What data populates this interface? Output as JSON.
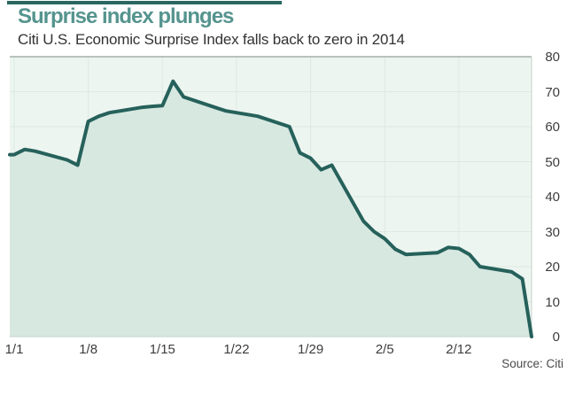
{
  "header": {
    "title": "Surprise index plunges",
    "subtitle": "Citi U.S. Economic Surprise Index falls back to zero in 2014"
  },
  "source": "Source: Citi",
  "colors": {
    "accent_bar": "#2a6761",
    "title": "#55948e",
    "subtitle_text": "#333333",
    "line": "#26615b",
    "area_fill": "#d7e8e1",
    "plot_bg": "#edf5f0",
    "grid": "#dde9e3",
    "border_top": "#a3afab",
    "border_light": "#c6d4ce",
    "tick_text": "#3d3d3d",
    "source_text": "#4a4a4a"
  },
  "chart_data": {
    "type": "area",
    "title": "Surprise index plunges",
    "subtitle": "Citi U.S. Economic Surprise Index falls back to zero in 2014",
    "source": "Source: Citi",
    "ylim": [
      0,
      80
    ],
    "y_ticks": [
      80,
      70,
      60,
      50,
      40,
      30,
      20,
      10,
      0
    ],
    "x_ticks": [
      {
        "label": "1/1",
        "day": 0
      },
      {
        "label": "1/8",
        "day": 7
      },
      {
        "label": "1/15",
        "day": 14
      },
      {
        "label": "1/22",
        "day": 21
      },
      {
        "label": "1/29",
        "day": 28
      },
      {
        "label": "2/5",
        "day": 35
      },
      {
        "label": "2/12",
        "day": 42
      }
    ],
    "grid": true,
    "legend": false,
    "y_axis_side": "right",
    "series": [
      {
        "name": "Citi U.S. Economic Surprise Index",
        "points": [
          {
            "date": "1/1",
            "day": 0,
            "value": 52
          },
          {
            "date": "1/2",
            "day": 1,
            "value": 53.5
          },
          {
            "date": "1/3",
            "day": 2,
            "value": 53
          },
          {
            "date": "1/6",
            "day": 5,
            "value": 50.5
          },
          {
            "date": "1/7",
            "day": 6,
            "value": 49
          },
          {
            "date": "1/8",
            "day": 7,
            "value": 61.5
          },
          {
            "date": "1/9",
            "day": 8,
            "value": 63
          },
          {
            "date": "1/10",
            "day": 9,
            "value": 64
          },
          {
            "date": "1/13",
            "day": 12,
            "value": 65.5
          },
          {
            "date": "1/14",
            "day": 13,
            "value": 65.8
          },
          {
            "date": "1/15",
            "day": 14,
            "value": 66
          },
          {
            "date": "1/16",
            "day": 15,
            "value": 73
          },
          {
            "date": "1/17",
            "day": 16,
            "value": 68.5
          },
          {
            "date": "1/20",
            "day": 19,
            "value": 65.5
          },
          {
            "date": "1/21",
            "day": 20,
            "value": 64.5
          },
          {
            "date": "1/22",
            "day": 21,
            "value": 64
          },
          {
            "date": "1/23",
            "day": 22,
            "value": 63.5
          },
          {
            "date": "1/24",
            "day": 23,
            "value": 63
          },
          {
            "date": "1/27",
            "day": 26,
            "value": 60
          },
          {
            "date": "1/28",
            "day": 27,
            "value": 52.5
          },
          {
            "date": "1/29",
            "day": 28,
            "value": 51
          },
          {
            "date": "1/30",
            "day": 29,
            "value": 47.7
          },
          {
            "date": "1/31",
            "day": 30,
            "value": 49
          },
          {
            "date": "2/3",
            "day": 33,
            "value": 33
          },
          {
            "date": "2/4",
            "day": 34,
            "value": 30
          },
          {
            "date": "2/5",
            "day": 35,
            "value": 28
          },
          {
            "date": "2/6",
            "day": 36,
            "value": 25
          },
          {
            "date": "2/7",
            "day": 37,
            "value": 23.5
          },
          {
            "date": "2/10",
            "day": 40,
            "value": 24
          },
          {
            "date": "2/11",
            "day": 41,
            "value": 25.5
          },
          {
            "date": "2/12",
            "day": 42,
            "value": 25.2
          },
          {
            "date": "2/13",
            "day": 43,
            "value": 23.5
          },
          {
            "date": "2/14",
            "day": 44,
            "value": 20
          },
          {
            "date": "2/17",
            "day": 47,
            "value": 18.5
          },
          {
            "date": "2/18",
            "day": 48,
            "value": 16.5
          },
          {
            "date": "2/19",
            "day": 49,
            "value": 0
          }
        ]
      }
    ]
  }
}
